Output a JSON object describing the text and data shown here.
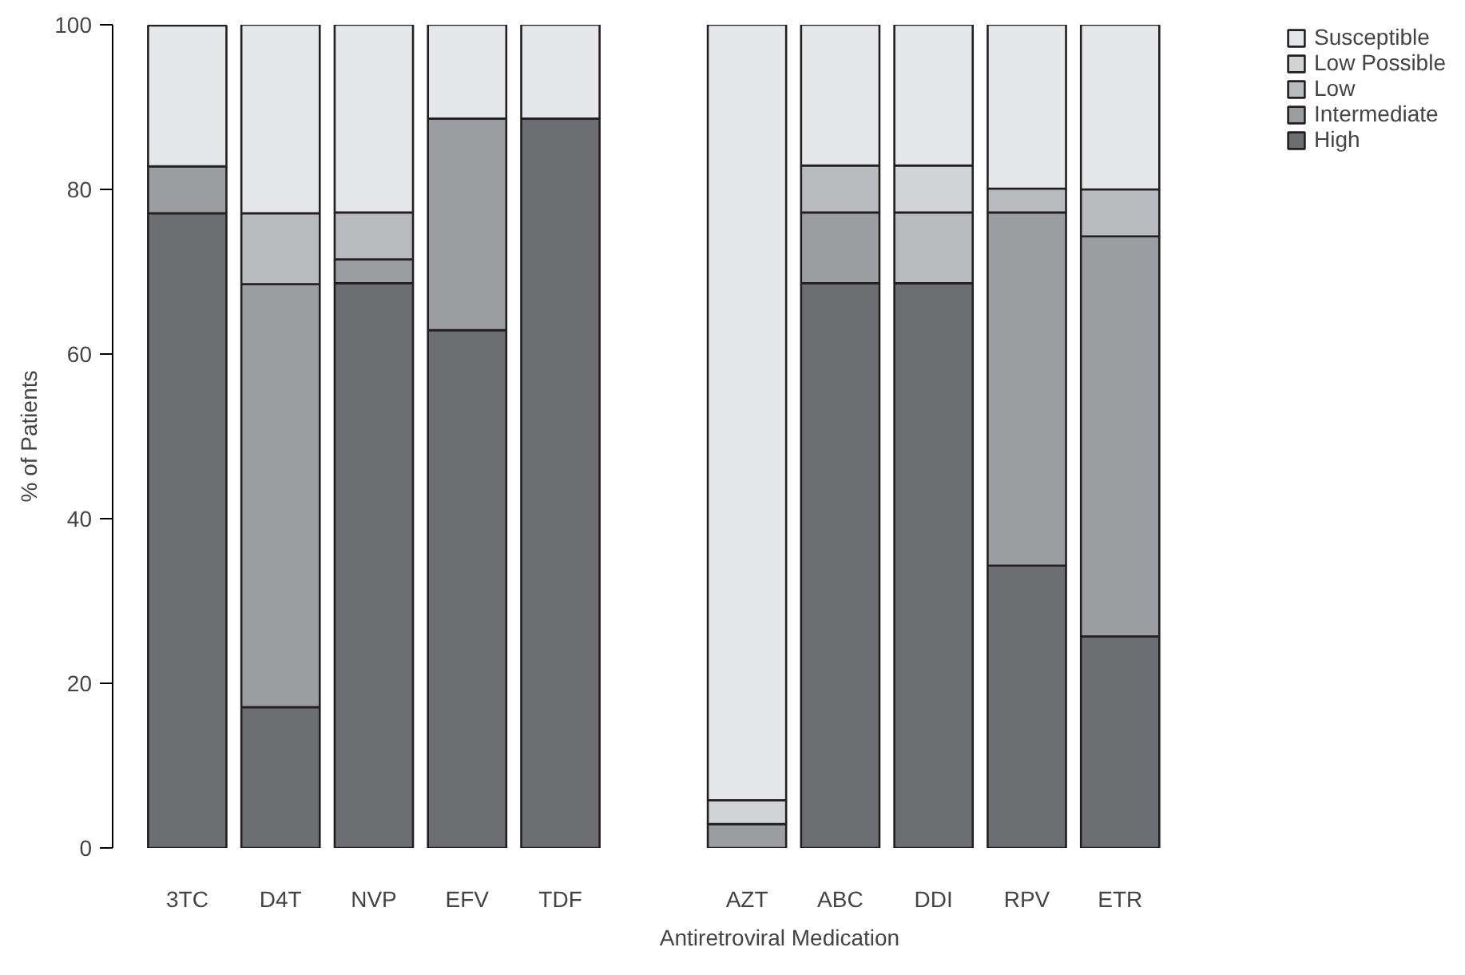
{
  "chart_data": {
    "type": "bar",
    "stacked": true,
    "xlabel": "Antiretroviral Medication",
    "ylabel": "% of Patients",
    "categories": [
      "3TC",
      "D4T",
      "NVP",
      "EFV",
      "TDF",
      null,
      "AZT",
      "ABC",
      "DDI",
      "RPV",
      "ETR"
    ],
    "series": [
      {
        "name": "High",
        "color": "#6d6e72",
        "values": [
          77.1,
          17.1,
          68.6,
          62.9,
          88.6,
          null,
          0,
          68.6,
          68.6,
          34.3,
          25.7
        ]
      },
      {
        "name": "Intermediate",
        "color": "#9c9da1",
        "values": [
          5.7,
          51.4,
          2.9,
          25.7,
          0,
          null,
          2.9,
          8.6,
          0,
          42.9,
          48.6
        ]
      },
      {
        "name": "Low",
        "color": "#b9babd",
        "values": [
          0,
          8.6,
          5.7,
          0,
          0,
          null,
          0,
          5.7,
          8.6,
          2.9,
          5.7
        ]
      },
      {
        "name": "Low Possible",
        "color": "#d2d3d5",
        "values": [
          0,
          0,
          0,
          0,
          0,
          null,
          2.9,
          0,
          5.7,
          0,
          0
        ]
      },
      {
        "name": "Susceptible",
        "color": "#e6e7e8",
        "values": [
          17.1,
          22.9,
          22.9,
          11.4,
          11.4,
          null,
          94.3,
          17.1,
          17.1,
          20,
          20
        ]
      }
    ],
    "ylim": [
      0,
      100
    ],
    "yticks": [
      0,
      20,
      40,
      60,
      80,
      100
    ],
    "grid": false,
    "legend": "top right"
  }
}
